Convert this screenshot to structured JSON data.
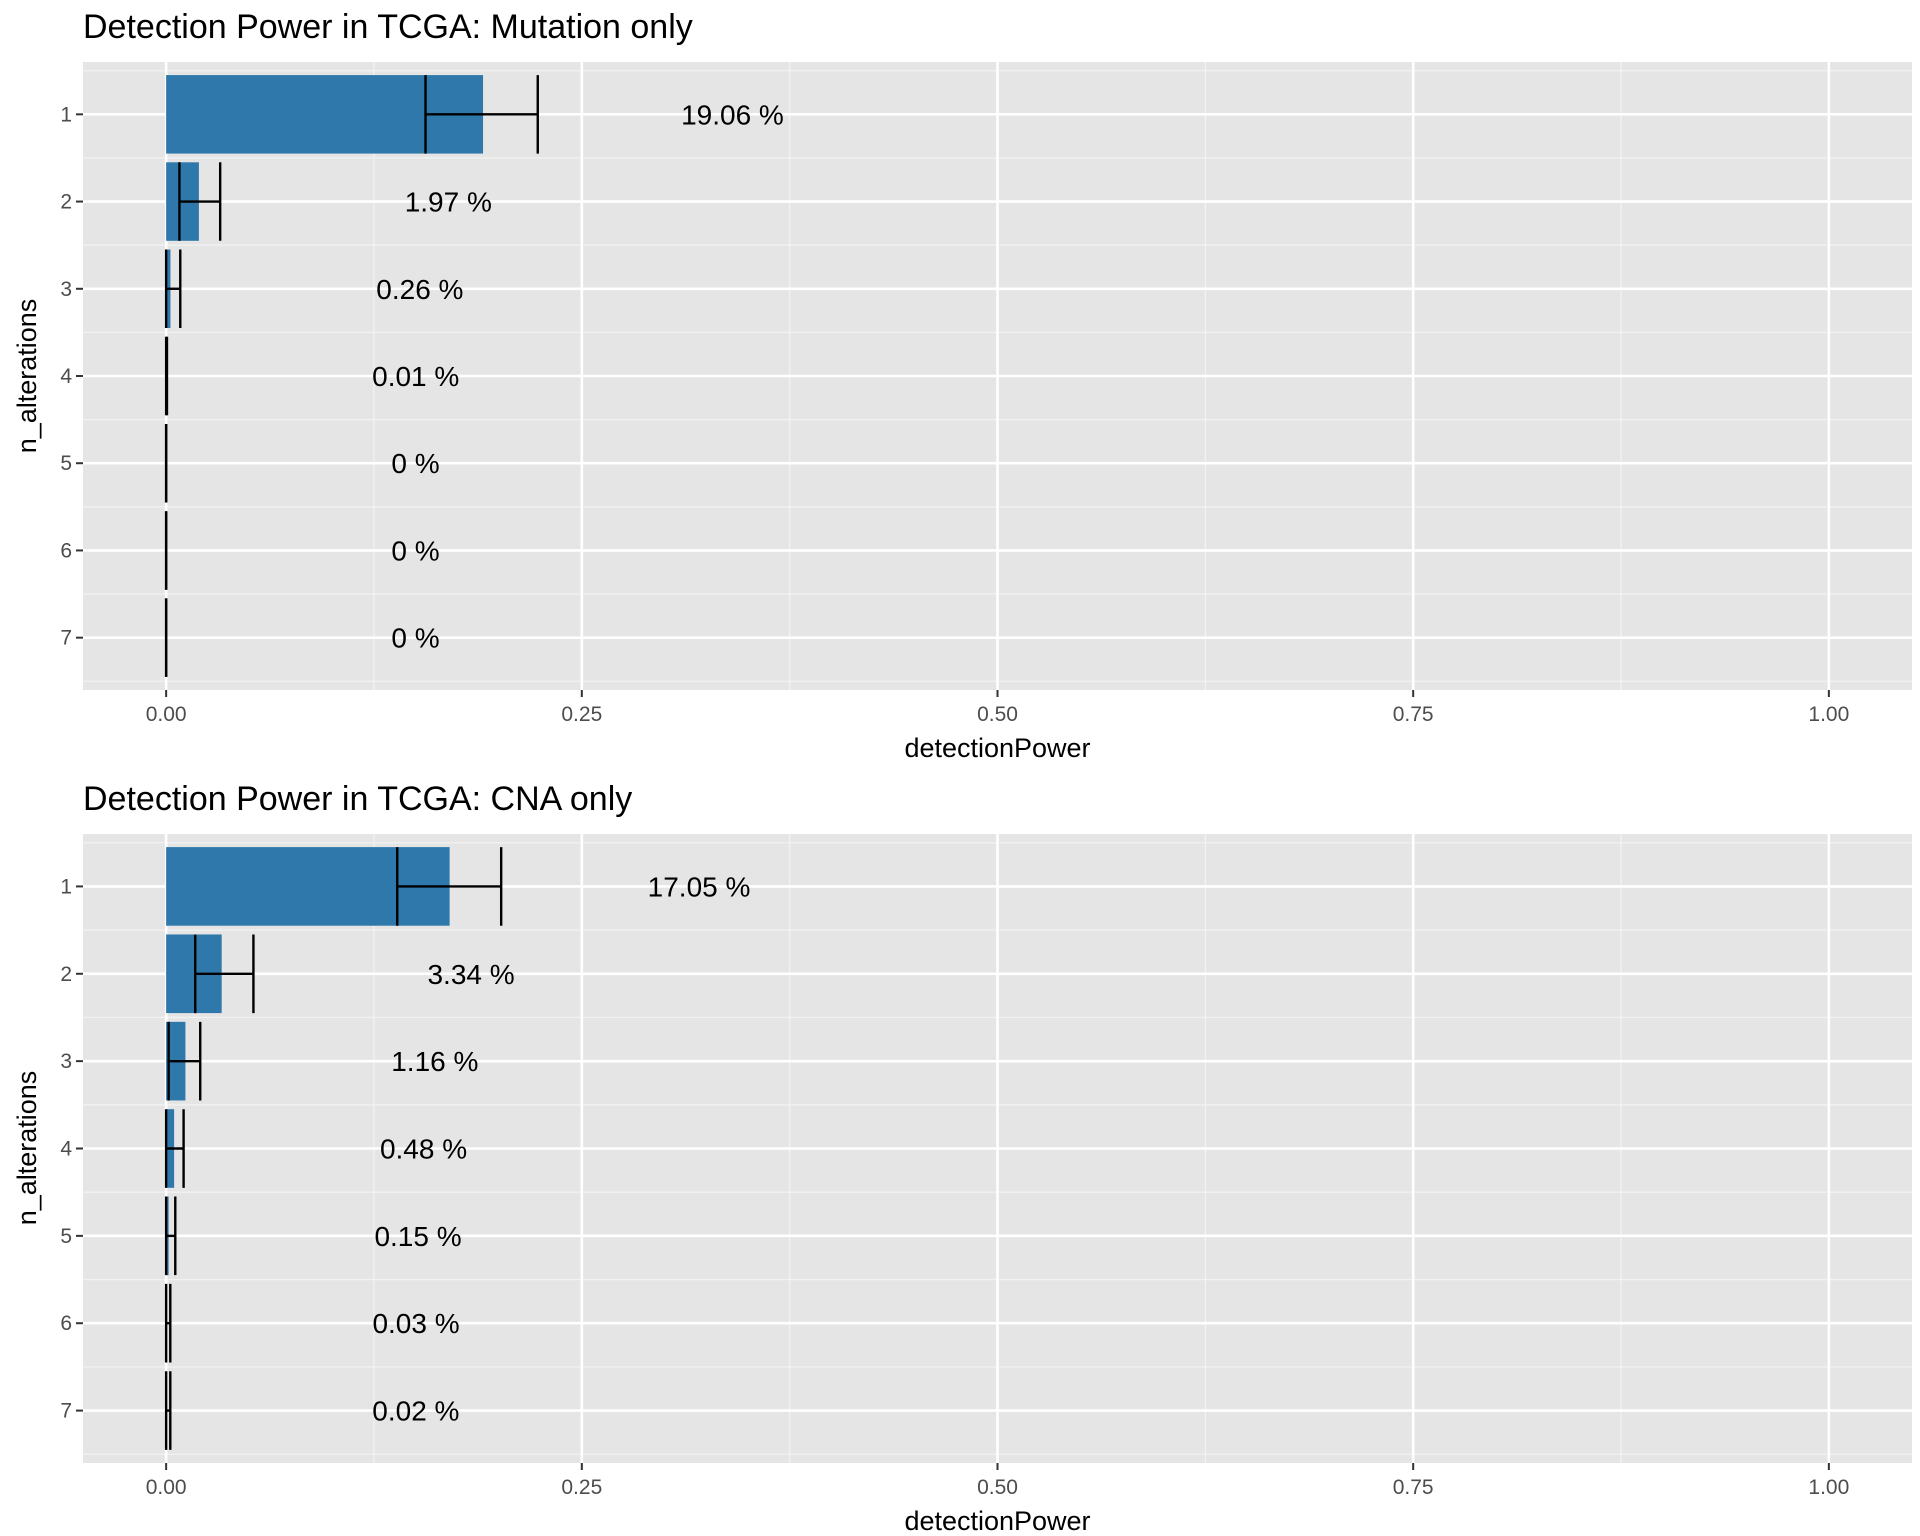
{
  "chart_data": [
    {
      "type": "bar",
      "orientation": "horizontal",
      "title": "Detection Power in TCGA: Mutation only",
      "xlabel": "detectionPower",
      "ylabel": "n_alterations",
      "categories": [
        "1",
        "2",
        "3",
        "4",
        "5",
        "6",
        "7"
      ],
      "values": [
        0.1906,
        0.0197,
        0.0026,
        0.0001,
        0.0,
        0.0,
        0.0
      ],
      "error_low": [
        0.156,
        0.008,
        0.0,
        0.0,
        0.0,
        0.0,
        0.0
      ],
      "error_high": [
        0.2235,
        0.0325,
        0.0085,
        0.0005,
        0.0,
        0.0,
        0.0
      ],
      "labels": [
        "19.06 %",
        "1.97 %",
        "0.26 %",
        "0.01 %",
        "0 %",
        "0 %",
        "0 %"
      ],
      "xticks": [
        "0.00",
        "0.25",
        "0.50",
        "0.75",
        "1.00"
      ],
      "xlim": [
        -0.05,
        1.05
      ],
      "grid": true,
      "bar_color": "#2e78ab",
      "panel_color": "#e5e5e5"
    },
    {
      "type": "bar",
      "orientation": "horizontal",
      "title": "Detection Power in TCGA: CNA only",
      "xlabel": "detectionPower",
      "ylabel": "n_alterations",
      "categories": [
        "1",
        "2",
        "3",
        "4",
        "5",
        "6",
        "7"
      ],
      "values": [
        0.1705,
        0.0334,
        0.0116,
        0.0048,
        0.0015,
        0.0003,
        0.0002
      ],
      "error_low": [
        0.139,
        0.0175,
        0.0015,
        0.0,
        0.0,
        0.0,
        0.0
      ],
      "error_high": [
        0.2015,
        0.0525,
        0.0205,
        0.0105,
        0.0055,
        0.0025,
        0.0025
      ],
      "labels": [
        "17.05 %",
        "3.34 %",
        "1.16 %",
        "0.48 %",
        "0.15 %",
        "0.03 %",
        "0.02 %"
      ],
      "xticks": [
        "0.00",
        "0.25",
        "0.50",
        "0.75",
        "1.00"
      ],
      "xlim": [
        -0.05,
        1.05
      ],
      "grid": true,
      "bar_color": "#2e78ab",
      "panel_color": "#e5e5e5"
    }
  ]
}
